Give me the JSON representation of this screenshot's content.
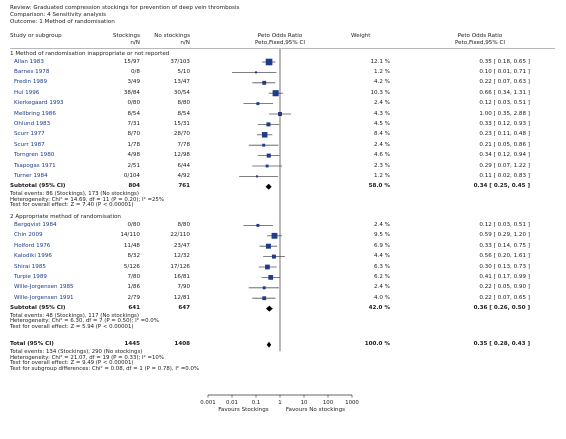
{
  "review": {
    "review_line": "Review:  Graduated compression stockings for prevention of deep vein thrombosis",
    "comparison_line": "Comparison:  4 Sensitivity analysis",
    "outcome_line": "Outcome:  1 Method of randomisation"
  },
  "columns": {
    "study": "Study or subgroup",
    "stockings": "Stockings",
    "stockings_sub": "n/N",
    "no_stockings": "No stockings",
    "no_stockings_sub": "n/N",
    "or_plot": "Peto Odds Ratio",
    "or_plot_sub": "Peto,Fixed,95% CI",
    "weight": "Weight",
    "or_text": "Peto Odds Ratio",
    "or_text_sub": "Peto,Fixed,95% CI"
  },
  "chart_data": {
    "type": "forest",
    "x_scale": "log",
    "xlim": [
      0.001,
      1000
    ],
    "x_ticks": [
      "0.001",
      "0.01",
      "0.1",
      "1",
      "10",
      "100",
      "1000"
    ],
    "favours_left": "Favours Stockings",
    "favours_right": "Favours No stockings",
    "subgroups": [
      {
        "title": "1 Method of randomisation inappropriate or not reported",
        "studies": [
          {
            "name": "Allan 1983",
            "stockings": "15/97",
            "no_stockings": "37/103",
            "weight": "12.1 %",
            "ci": "0.35 [ 0.18, 0.65 ]",
            "or": 0.35,
            "lo": 0.18,
            "hi": 0.65,
            "w": 12.1
          },
          {
            "name": "Barnes 1978",
            "stockings": "0/8",
            "no_stockings": "5/10",
            "weight": "1.2 %",
            "ci": "0.10 [ 0.01, 0.71 ]",
            "or": 0.1,
            "lo": 0.01,
            "hi": 0.71,
            "w": 1.2
          },
          {
            "name": "Fredin 1989",
            "stockings": "3/49",
            "no_stockings": "13/47",
            "weight": "4.2 %",
            "ci": "0.22 [ 0.07, 0.63 ]",
            "or": 0.22,
            "lo": 0.07,
            "hi": 0.63,
            "w": 4.2
          },
          {
            "name": "Hui 1996",
            "stockings": "38/84",
            "no_stockings": "30/54",
            "weight": "10.3 %",
            "ci": "0.66 [ 0.34, 1.31 ]",
            "or": 0.66,
            "lo": 0.34,
            "hi": 1.31,
            "w": 10.3
          },
          {
            "name": "Kierkegaard 1993",
            "stockings": "0/80",
            "no_stockings": "8/80",
            "weight": "2.4 %",
            "ci": "0.12 [ 0.03, 0.51 ]",
            "or": 0.12,
            "lo": 0.03,
            "hi": 0.51,
            "w": 2.4
          },
          {
            "name": "Mellbring 1986",
            "stockings": "8/54",
            "no_stockings": "8/54",
            "weight": "4.3 %",
            "ci": "1.00 [ 0.35, 2.88 ]",
            "or": 1.0,
            "lo": 0.35,
            "hi": 2.88,
            "w": 4.3
          },
          {
            "name": "Ohlund 1983",
            "stockings": "7/31",
            "no_stockings": "15/31",
            "weight": "4.5 %",
            "ci": "0.33 [ 0.12, 0.93 ]",
            "or": 0.33,
            "lo": 0.12,
            "hi": 0.93,
            "w": 4.5
          },
          {
            "name": "Scurr 1977",
            "stockings": "8/70",
            "no_stockings": "28/70",
            "weight": "8.4 %",
            "ci": "0.23 [ 0.11, 0.48 ]",
            "or": 0.23,
            "lo": 0.11,
            "hi": 0.48,
            "w": 8.4
          },
          {
            "name": "Scurr 1987",
            "stockings": "1/78",
            "no_stockings": "7/78",
            "weight": "2.4 %",
            "ci": "0.21 [ 0.05, 0.86 ]",
            "or": 0.21,
            "lo": 0.05,
            "hi": 0.86,
            "w": 2.4
          },
          {
            "name": "Torngren 1980",
            "stockings": "4/98",
            "no_stockings": "12/98",
            "weight": "4.6 %",
            "ci": "0.34 [ 0.12, 0.94 ]",
            "or": 0.34,
            "lo": 0.12,
            "hi": 0.94,
            "w": 4.6
          },
          {
            "name": "Tsapogas 1971",
            "stockings": "2/51",
            "no_stockings": "6/44",
            "weight": "2.3 %",
            "ci": "0.29 [ 0.07, 1.22 ]",
            "or": 0.29,
            "lo": 0.07,
            "hi": 1.22,
            "w": 2.3
          },
          {
            "name": "Turner 1984",
            "stockings": "0/104",
            "no_stockings": "4/92",
            "weight": "1.2 %",
            "ci": "0.11 [ 0.02, 0.83 ]",
            "or": 0.11,
            "lo": 0.02,
            "hi": 0.83,
            "w": 1.2
          }
        ],
        "subtotal": {
          "label": "Subtotal (95% CI)",
          "stockings": "804",
          "no_stockings": "761",
          "weight": "58.0 %",
          "ci": "0.34 [ 0.25, 0.45 ]",
          "or": 0.34,
          "lo": 0.25,
          "hi": 0.45
        },
        "events": "Total events: 86 (Stockings), 173 (No stockings)",
        "heterogeneity": "Heterogeneity: Chi² = 14.69, df = 11 (P = 0.20); I² =25%",
        "overall": "Test for overall effect: Z = 7.40 (P < 0.00001)"
      },
      {
        "title": "2 Appropriate method of randomisation",
        "studies": [
          {
            "name": "Bergqvist 1984",
            "stockings": "0/80",
            "no_stockings": "8/80",
            "weight": "2.4 %",
            "ci": "0.12 [ 0.03, 0.51 ]",
            "or": 0.12,
            "lo": 0.03,
            "hi": 0.51,
            "w": 2.4
          },
          {
            "name": "Chin 2009",
            "stockings": "14/110",
            "no_stockings": "22/110",
            "weight": "9.5 %",
            "ci": "0.59 [ 0.29, 1.20 ]",
            "or": 0.59,
            "lo": 0.29,
            "hi": 1.2,
            "w": 9.5
          },
          {
            "name": "Holford 1976",
            "stockings": "11/48",
            "no_stockings": "23/47",
            "weight": "6.9 %",
            "ci": "0.33 [ 0.14, 0.75 ]",
            "or": 0.33,
            "lo": 0.14,
            "hi": 0.75,
            "w": 6.9
          },
          {
            "name": "Kalodiki 1996",
            "stockings": "8/32",
            "no_stockings": "12/32",
            "weight": "4.4 %",
            "ci": "0.56 [ 0.20, 1.61 ]",
            "or": 0.56,
            "lo": 0.2,
            "hi": 1.61,
            "w": 4.4
          },
          {
            "name": "Shirai 1985",
            "stockings": "5/126",
            "no_stockings": "17/126",
            "weight": "6.3 %",
            "ci": "0.30 [ 0.13, 0.73 ]",
            "or": 0.3,
            "lo": 0.13,
            "hi": 0.73,
            "w": 6.3
          },
          {
            "name": "Turpie 1989",
            "stockings": "7/80",
            "no_stockings": "16/81",
            "weight": "6.2 %",
            "ci": "0.41 [ 0.17, 0.99 ]",
            "or": 0.41,
            "lo": 0.17,
            "hi": 0.99,
            "w": 6.2
          },
          {
            "name": "Wille-Jorgensen 1985",
            "stockings": "1/86",
            "no_stockings": "7/90",
            "weight": "2.4 %",
            "ci": "0.22 [ 0.05, 0.90 ]",
            "or": 0.22,
            "lo": 0.05,
            "hi": 0.9,
            "w": 2.4
          },
          {
            "name": "Wille-Jorgensen 1991",
            "stockings": "2/79",
            "no_stockings": "12/81",
            "weight": "4.0 %",
            "ci": "0.22 [ 0.07, 0.65 ]",
            "or": 0.22,
            "lo": 0.07,
            "hi": 0.65,
            "w": 4.0
          }
        ],
        "subtotal": {
          "label": "Subtotal (95% CI)",
          "stockings": "641",
          "no_stockings": "647",
          "weight": "42.0 %",
          "ci": "0.36 [ 0.26, 0.50 ]",
          "or": 0.36,
          "lo": 0.26,
          "hi": 0.5
        },
        "events": "Total events: 48 (Stockings), 117 (No stockings)",
        "heterogeneity": "Heterogeneity: Chi² = 6.30, df = 7 (P = 0.50); I² =0.0%",
        "overall": "Test for overall effect: Z = 5.94 (P < 0.00001)"
      }
    ],
    "total": {
      "label": "Total (95% CI)",
      "stockings": "1445",
      "no_stockings": "1408",
      "weight": "100.0 %",
      "ci": "0.35 [ 0.28, 0.43 ]",
      "or": 0.35,
      "lo": 0.28,
      "hi": 0.43
    },
    "total_events": "Total events: 134 (Stockings), 290 (No stockings)",
    "total_heterogeneity": "Heterogeneity: Chi² = 21.07, df = 19 (P = 0.33); I² =10%",
    "total_overall": "Test for overall effect: Z = 9.49 (P < 0.00001)",
    "subgroup_differences": "Test for subgroup differences: Chi² = 0.08, df = 1 (P = 0.78), I² =0.0%",
    "colors": {
      "square": "#1f3c8c",
      "diamond": "#000000",
      "ci_line": "#555555",
      "axis": "#333333"
    }
  }
}
